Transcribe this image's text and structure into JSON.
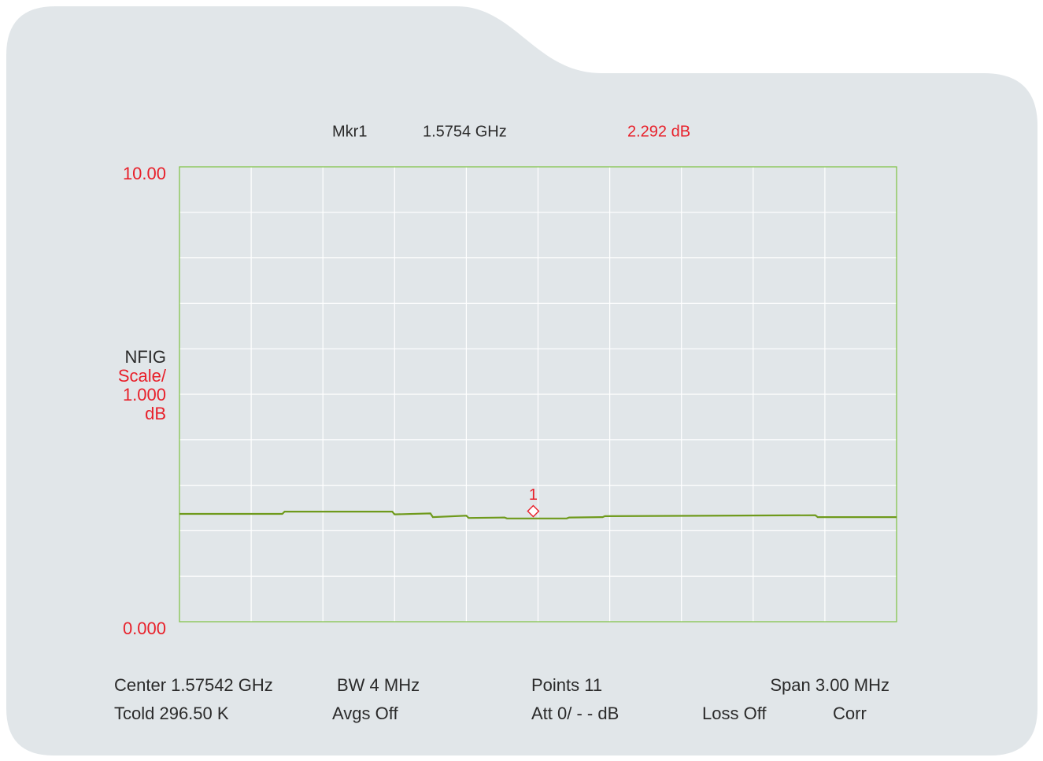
{
  "chart_data": {
    "type": "line",
    "marker_readout": {
      "name": "Mkr1",
      "frequency": "1.5754 GHz",
      "amplitude": "2.292 dB"
    },
    "measurement": "NFIG",
    "scale_label": [
      "Scale/",
      "1.000",
      "dB"
    ],
    "ylim": [
      0,
      10
    ],
    "yticks": [
      {
        "value": 10,
        "label": "10.00"
      },
      {
        "value": 0,
        "label": "0.000"
      }
    ],
    "ygrid": [
      1,
      2,
      3,
      4,
      5,
      6,
      7,
      8,
      9
    ],
    "xlim": [
      1.57392,
      1.57692
    ],
    "xgrid": [
      1.57422,
      1.57452,
      1.57482,
      1.57512,
      1.57542,
      1.57572,
      1.57602,
      1.57632,
      1.57662
    ],
    "grid": true,
    "x": [
      1.57392,
      1.57435,
      1.57436,
      1.57481,
      1.57482,
      1.57497,
      1.57498,
      1.57512,
      1.57513,
      1.57528,
      1.57529,
      1.57554,
      1.57555,
      1.57569,
      1.5757,
      1.57658,
      1.57659,
      1.57692
    ],
    "series": [
      {
        "color": "#6f9a1c",
        "values": [
          2.37,
          2.37,
          2.42,
          2.42,
          2.36,
          2.38,
          2.3,
          2.33,
          2.28,
          2.29,
          2.27,
          2.27,
          2.29,
          2.3,
          2.32,
          2.34,
          2.3,
          2.3
        ]
      }
    ],
    "marker": {
      "label": "1",
      "x": 1.5754,
      "value": 2.292,
      "color": "#e8202a"
    },
    "status": [
      [
        "Center 1.57542 GHz",
        "BW 4 MHz",
        "Points 11",
        "Span 3.00 MHz"
      ],
      [
        "Tcold 296.50 K",
        "Avgs Off",
        "Att 0/ - - dB",
        "Loss Off",
        "Corr"
      ]
    ]
  }
}
